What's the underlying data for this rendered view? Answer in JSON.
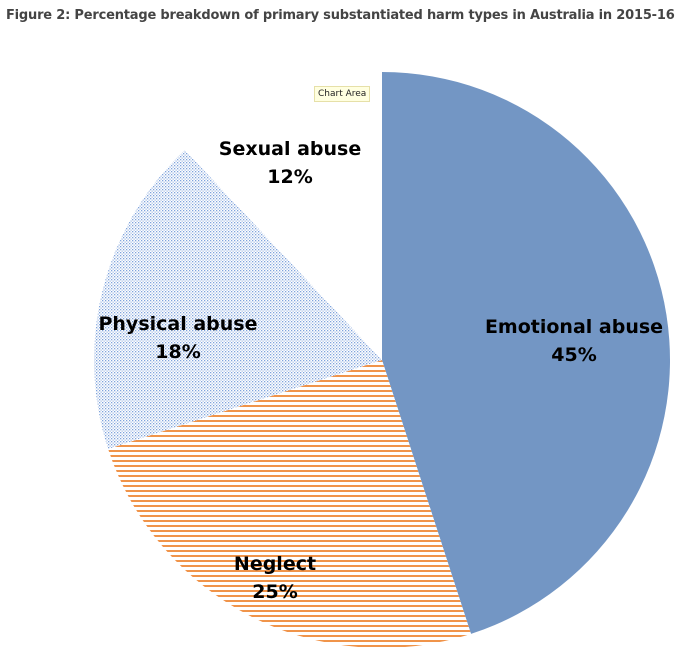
{
  "chart_data": {
    "type": "pie",
    "title": "Figure 2: Percentage breakdown of primary substantiated harm types in Australia in 2015-16",
    "slices": [
      {
        "label": "Emotional abuse",
        "value": 45,
        "display": "45%",
        "color": "#7396c4",
        "pattern": "solid"
      },
      {
        "label": "Neglect",
        "value": 25,
        "display": "25%",
        "color": "#f0944a",
        "pattern": "horizontal-lines"
      },
      {
        "label": "Physical abuse",
        "value": 18,
        "display": "18%",
        "color": "#7fa3dc",
        "pattern": "dots"
      },
      {
        "label": "Sexual abuse",
        "value": 12,
        "display": "12%",
        "color": "#ffffff",
        "pattern": "none"
      }
    ],
    "start": "top",
    "direction": "clockwise"
  },
  "tooltip": "Chart Area"
}
